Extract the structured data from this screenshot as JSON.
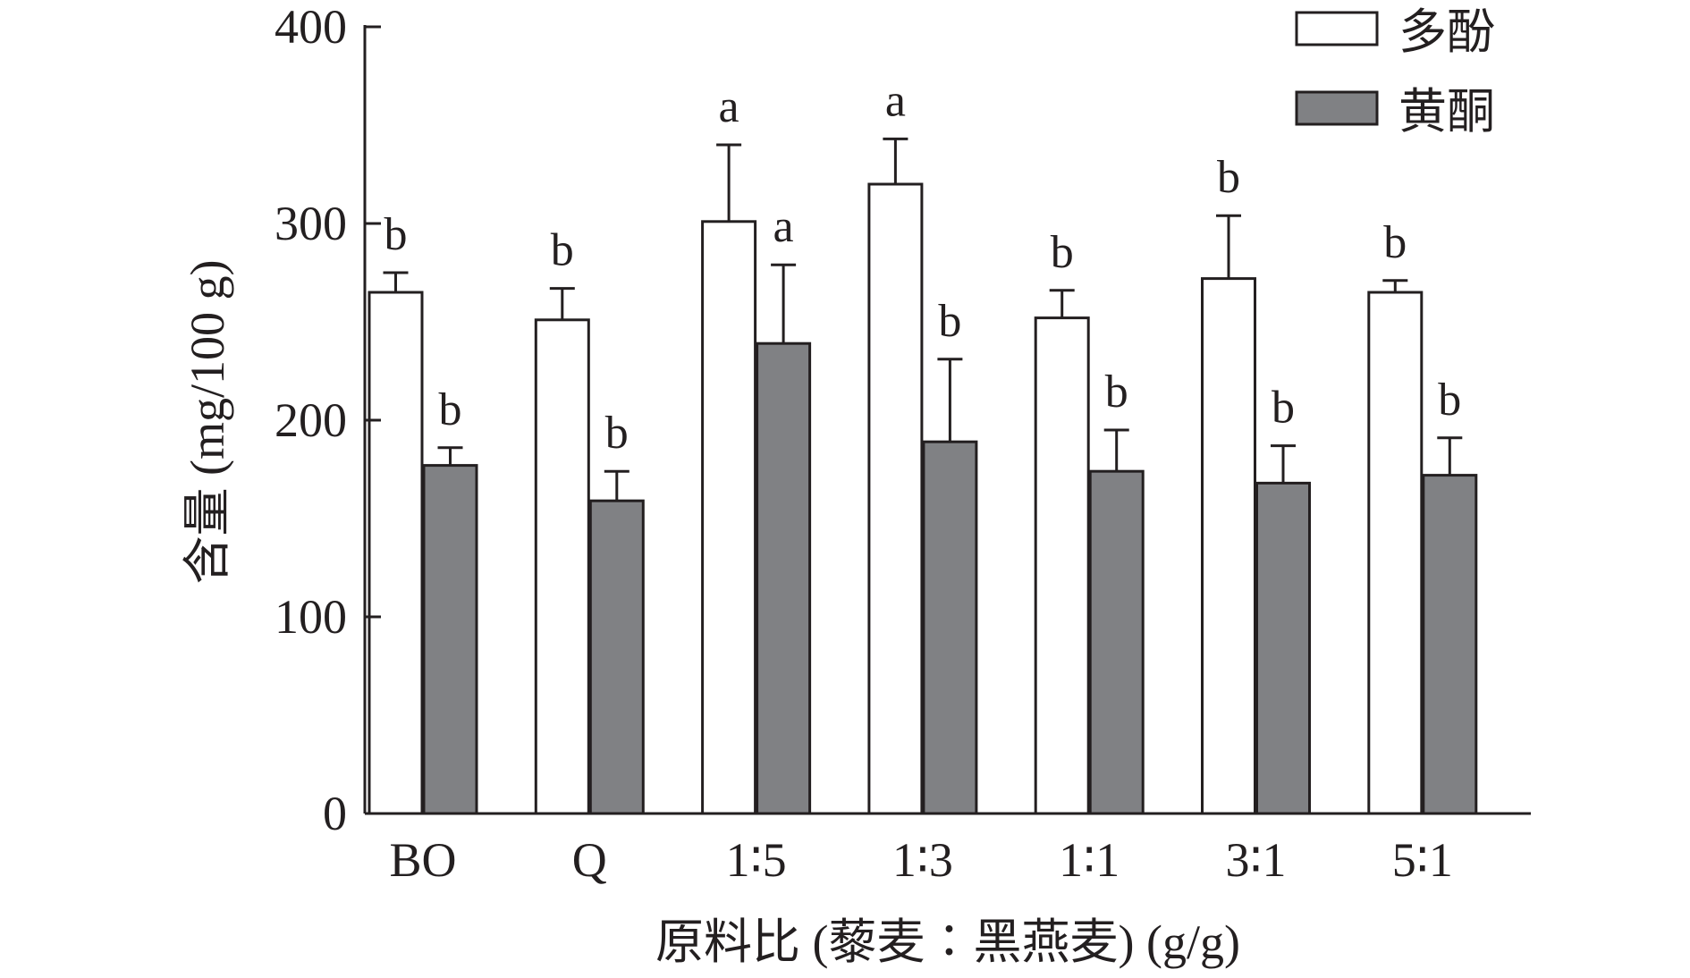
{
  "chart_data": {
    "type": "bar",
    "xlabel": "原料比 (藜麦∶黑燕麦) (g/g)",
    "ylabel": "含量 (mg/100 g)",
    "ylim": [
      0,
      400
    ],
    "yticks": [
      0,
      100,
      200,
      300,
      400
    ],
    "categories": [
      "BO",
      "Q",
      "1∶5",
      "1∶3",
      "1∶1",
      "3∶1",
      "5∶1"
    ],
    "legend_position": "top-right",
    "series": [
      {
        "name": "多酚",
        "color": "#ffffff",
        "values": [
          265,
          251,
          301,
          320,
          252,
          272,
          265
        ],
        "errors": [
          10,
          16,
          39,
          23,
          14,
          32,
          6
        ],
        "significance": [
          "b",
          "b",
          "a",
          "a",
          "b",
          "b",
          "b"
        ]
      },
      {
        "name": "黄酮",
        "color": "#808184",
        "values": [
          177,
          159,
          239,
          189,
          174,
          168,
          172
        ],
        "errors": [
          9,
          15,
          40,
          42,
          21,
          19,
          19
        ],
        "significance": [
          "b",
          "b",
          "a",
          "b",
          "b",
          "b",
          "b"
        ]
      }
    ]
  }
}
